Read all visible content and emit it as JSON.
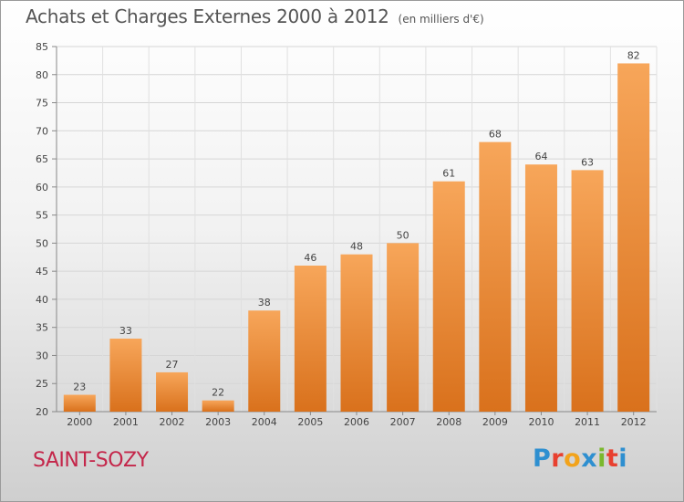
{
  "title": "Achats et Charges Externes 2000 à 2012",
  "unit": "(en milliers d'€)",
  "commune": "SAINT-SOZY",
  "logo": {
    "text": "Proxiti",
    "letters": [
      {
        "char": "P",
        "color": "#2e8fd0"
      },
      {
        "char": "r",
        "color": "#e8402f"
      },
      {
        "char": "o",
        "color": "#f2a31b"
      },
      {
        "char": "x",
        "color": "#2e8fd0"
      },
      {
        "char": "i",
        "color": "#7ab82d"
      },
      {
        "char": "t",
        "color": "#e8402f"
      },
      {
        "char": "i",
        "color": "#2e8fd0"
      }
    ]
  },
  "chart_data": {
    "type": "bar",
    "categories": [
      "2000",
      "2001",
      "2002",
      "2003",
      "2004",
      "2005",
      "2006",
      "2007",
      "2008",
      "2009",
      "2010",
      "2011",
      "2012"
    ],
    "values": [
      23,
      33,
      27,
      22,
      38,
      46,
      48,
      50,
      61,
      68,
      64,
      63,
      82
    ],
    "ylim": [
      20,
      85
    ],
    "yticks": [
      20,
      25,
      30,
      35,
      40,
      45,
      50,
      55,
      60,
      65,
      70,
      75,
      80,
      85
    ],
    "grid": true,
    "bar_color_top": "#f7a65a",
    "bar_color_bottom": "#d9711c"
  }
}
